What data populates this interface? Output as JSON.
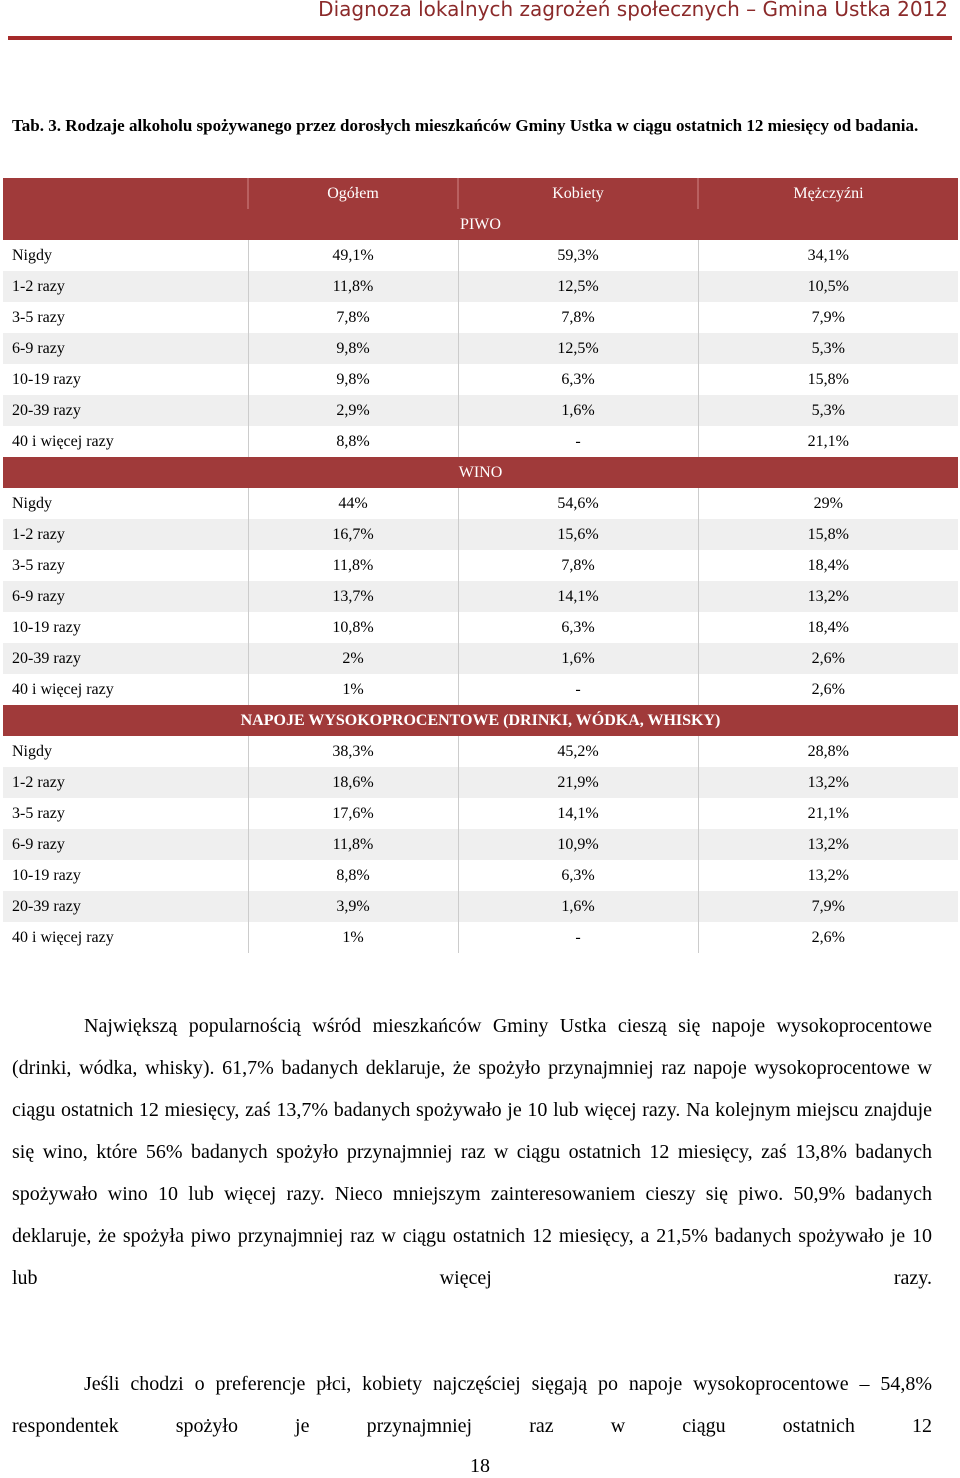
{
  "header": {
    "title": "Diagnoza lokalnych zagrożeń społecznych – Gmina Ustka 2012"
  },
  "caption": "Tab. 3. Rodzaje alkoholu spożywanego przez dorosłych mieszkańców Gminy Ustka w ciągu ostatnich 12 miesięcy od badania.",
  "table": {
    "columns": [
      "Ogółem",
      "Kobiety",
      "Mężczyźni"
    ],
    "sections": [
      {
        "title": "PIWO",
        "rows": [
          [
            "Nigdy",
            "49,1%",
            "59,3%",
            "34,1%"
          ],
          [
            "1-2 razy",
            "11,8%",
            "12,5%",
            "10,5%"
          ],
          [
            "3-5 razy",
            "7,8%",
            "7,8%",
            "7,9%"
          ],
          [
            "6-9 razy",
            "9,8%",
            "12,5%",
            "5,3%"
          ],
          [
            "10-19 razy",
            "9,8%",
            "6,3%",
            "15,8%"
          ],
          [
            "20-39 razy",
            "2,9%",
            "1,6%",
            "5,3%"
          ],
          [
            "40 i więcej razy",
            "8,8%",
            "-",
            "21,1%"
          ]
        ]
      },
      {
        "title": "WINO",
        "rows": [
          [
            "Nigdy",
            "44%",
            "54,6%",
            "29%"
          ],
          [
            "1-2 razy",
            "16,7%",
            "15,6%",
            "15,8%"
          ],
          [
            "3-5 razy",
            "11,8%",
            "7,8%",
            "18,4%"
          ],
          [
            "6-9 razy",
            "13,7%",
            "14,1%",
            "13,2%"
          ],
          [
            "10-19 razy",
            "10,8%",
            "6,3%",
            "18,4%"
          ],
          [
            "20-39 razy",
            "2%",
            "1,6%",
            "2,6%"
          ],
          [
            "40 i więcej razy",
            "1%",
            "-",
            "2,6%"
          ]
        ]
      },
      {
        "title": "NAPOJE WYSOKOPROCENTOWE (DRINKI, WÓDKA, WHISKY)",
        "rows": [
          [
            "Nigdy",
            "38,3%",
            "45,2%",
            "28,8%"
          ],
          [
            "1-2 razy",
            "18,6%",
            "21,9%",
            "13,2%"
          ],
          [
            "3-5 razy",
            "17,6%",
            "14,1%",
            "21,1%"
          ],
          [
            "6-9 razy",
            "11,8%",
            "10,9%",
            "13,2%"
          ],
          [
            "10-19 razy",
            "8,8%",
            "6,3%",
            "13,2%"
          ],
          [
            "20-39 razy",
            "3,9%",
            "1,6%",
            "7,9%"
          ],
          [
            "40 i więcej razy",
            "1%",
            "-",
            "2,6%"
          ]
        ]
      }
    ]
  },
  "paragraphs": [
    "Największą popularnością wśród mieszkańców Gminy Ustka cieszą się napoje wysokoprocentowe (drinki, wódka, whisky). 61,7% badanych deklaruje, że spożyło przynajmniej raz napoje wysokoprocentowe w ciągu ostatnich 12 miesięcy, zaś 13,7% badanych spożywało je 10 lub więcej razy. Na kolejnym miejscu znajduje się wino, które 56% badanych spożyło przynajmniej raz w ciągu ostatnich 12 miesięcy, zaś 13,8% badanych spożywało wino 10 lub więcej razy. Nieco mniejszym zainteresowaniem cieszy się piwo. 50,9% badanych deklaruje, że spożyła piwo przynajmniej raz w ciągu ostatnich 12 miesięcy, a 21,5% badanych spożywało je 10 lub więcej razy.",
    "Jeśli chodzi o preferencje płci, kobiety najczęściej sięgają po napoje wysokoprocentowe – 54,8% respondentek spożyło je przynajmniej raz w ciągu ostatnich 12"
  ],
  "page_number": "18",
  "colors": {
    "accent": "#a03a3a",
    "header_text": "#8b2a2a",
    "row_alt": "#efefef"
  }
}
